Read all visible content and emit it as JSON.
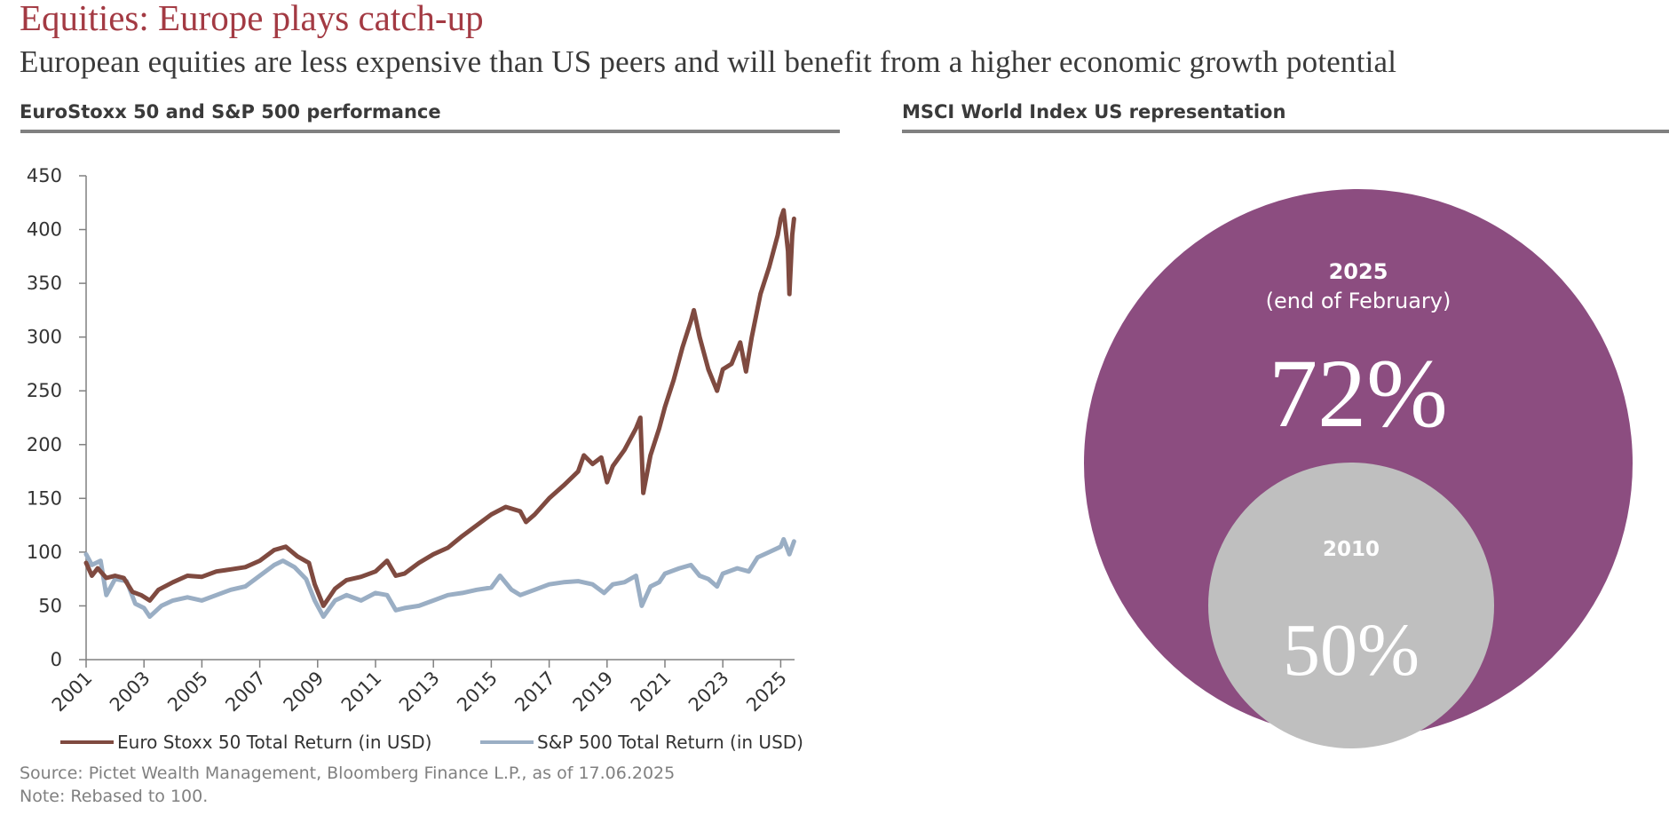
{
  "header": {
    "title": "Equities: Europe plays catch-up",
    "subtitle": "European equities are less expensive than US peers and will benefit from a higher economic growth potential"
  },
  "left_panel": {
    "heading": "EuroStoxx 50 and S&P 500 performance",
    "source": "Source: Pictet Wealth Management, Bloomberg Finance L.P., as of 17.06.2025",
    "note": "Note: Rebased to 100."
  },
  "right_panel": {
    "heading": "MSCI World Index US representation"
  },
  "colors": {
    "title_red": "#a33a43",
    "euro_stoxx_line": "#7f4a40",
    "sp500_line": "#9aaec4",
    "circle_2025": "#8c4d80",
    "circle_2010": "#bfbfbf",
    "rule_gray": "#808080"
  },
  "chart_data": [
    {
      "type": "line",
      "title": "EuroStoxx 50 and S&P 500 performance",
      "xlabel": "",
      "ylabel": "",
      "xlim": [
        2001,
        2025.5
      ],
      "ylim": [
        0,
        450
      ],
      "y_ticks": [
        0,
        50,
        100,
        150,
        200,
        250,
        300,
        350,
        400,
        450
      ],
      "x_ticks": [
        "2001",
        "2003",
        "2005",
        "2007",
        "2009",
        "2011",
        "2013",
        "2015",
        "2017",
        "2019",
        "2021",
        "2023",
        "2025"
      ],
      "grid": false,
      "legend_position": "bottom",
      "series": [
        {
          "name": "Euro Stoxx 50 Total Return (in USD)",
          "x": [
            2001.0,
            2001.2,
            2001.4,
            2001.7,
            2002.0,
            2002.3,
            2002.6,
            2002.9,
            2003.2,
            2003.5,
            2004.0,
            2004.5,
            2005.0,
            2005.5,
            2006.0,
            2006.5,
            2007.0,
            2007.5,
            2007.9,
            2008.3,
            2008.7,
            2008.9,
            2009.2,
            2009.6,
            2010.0,
            2010.5,
            2011.0,
            2011.4,
            2011.7,
            2012.0,
            2012.5,
            2013.0,
            2013.5,
            2014.0,
            2014.5,
            2015.0,
            2015.5,
            2016.0,
            2016.2,
            2016.5,
            2017.0,
            2017.5,
            2018.0,
            2018.2,
            2018.5,
            2018.8,
            2019.0,
            2019.2,
            2019.6,
            2020.0,
            2020.15,
            2020.25,
            2020.5,
            2020.8,
            2021.0,
            2021.3,
            2021.6,
            2021.9,
            2022.0,
            2022.2,
            2022.5,
            2022.8,
            2023.0,
            2023.3,
            2023.6,
            2023.8,
            2024.0,
            2024.3,
            2024.6,
            2024.9,
            2025.0,
            2025.1,
            2025.25,
            2025.3,
            2025.4,
            2025.46
          ],
          "values": [
            90,
            78,
            85,
            76,
            78,
            76,
            63,
            60,
            55,
            65,
            72,
            78,
            77,
            82,
            84,
            86,
            92,
            102,
            105,
            96,
            90,
            70,
            50,
            66,
            74,
            77,
            82,
            92,
            78,
            80,
            90,
            98,
            104,
            115,
            125,
            135,
            142,
            138,
            128,
            135,
            150,
            162,
            175,
            190,
            182,
            188,
            165,
            180,
            195,
            215,
            225,
            155,
            190,
            215,
            235,
            260,
            290,
            315,
            325,
            300,
            270,
            250,
            270,
            275,
            295,
            268,
            300,
            340,
            365,
            395,
            410,
            418,
            380,
            340,
            395,
            410
          ]
        },
        {
          "name": "S&P 500 Total Return (in USD)",
          "x": [
            2001.0,
            2001.2,
            2001.5,
            2001.7,
            2002.0,
            2002.4,
            2002.7,
            2003.0,
            2003.2,
            2003.6,
            2004.0,
            2004.5,
            2005.0,
            2005.5,
            2006.0,
            2006.5,
            2007.0,
            2007.5,
            2007.8,
            2008.2,
            2008.6,
            2008.9,
            2009.2,
            2009.6,
            2010.0,
            2010.5,
            2011.0,
            2011.4,
            2011.7,
            2012.0,
            2012.5,
            2013.0,
            2013.5,
            2014.0,
            2014.5,
            2015.0,
            2015.3,
            2015.7,
            2016.0,
            2016.5,
            2017.0,
            2017.5,
            2018.0,
            2018.5,
            2018.9,
            2019.2,
            2019.6,
            2020.0,
            2020.2,
            2020.5,
            2020.8,
            2021.0,
            2021.5,
            2021.9,
            2022.2,
            2022.5,
            2022.8,
            2023.0,
            2023.5,
            2023.9,
            2024.2,
            2024.6,
            2025.0,
            2025.1,
            2025.3,
            2025.46
          ],
          "values": [
            98,
            88,
            92,
            60,
            75,
            73,
            52,
            48,
            40,
            50,
            55,
            58,
            55,
            60,
            65,
            68,
            78,
            88,
            92,
            86,
            75,
            55,
            40,
            55,
            60,
            55,
            62,
            60,
            46,
            48,
            50,
            55,
            60,
            62,
            65,
            67,
            78,
            65,
            60,
            65,
            70,
            72,
            73,
            70,
            62,
            70,
            72,
            78,
            50,
            68,
            72,
            80,
            85,
            88,
            78,
            75,
            68,
            80,
            85,
            82,
            95,
            100,
            105,
            112,
            98,
            110
          ]
        }
      ]
    },
    {
      "type": "bubble",
      "title": "MSCI World Index US representation",
      "items": [
        {
          "label": "2025",
          "sublabel": "(end of February)",
          "value": 72,
          "display": "72%"
        },
        {
          "label": "2010",
          "sublabel": "",
          "value": 50,
          "display": "50%"
        }
      ]
    }
  ]
}
